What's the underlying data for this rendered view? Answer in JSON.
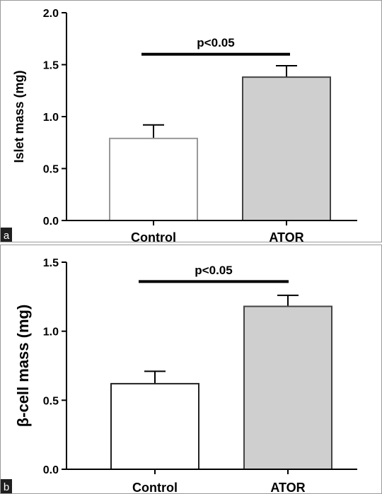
{
  "chart_data": [
    {
      "type": "bar",
      "panel_label": "a",
      "categories": [
        "Control",
        "ATOR"
      ],
      "values": [
        0.79,
        1.38
      ],
      "errors": [
        0.13,
        0.11
      ],
      "bar_colors": [
        "#ffffff",
        "#cfcfcf"
      ],
      "bar_edge_colors": [
        "#999999",
        "#444444"
      ],
      "ylabel": "Islet mass (mg)",
      "ylim": [
        0,
        2.0
      ],
      "yticks": [
        0.0,
        0.5,
        1.0,
        1.5,
        2.0
      ],
      "ytick_labels": [
        "0.0",
        "0.5",
        "1.0",
        "1.5",
        "2.0"
      ],
      "significance": {
        "label": "p<0.05",
        "y": 1.6
      },
      "grid": false
    },
    {
      "type": "bar",
      "panel_label": "b",
      "categories": [
        "Control",
        "ATOR"
      ],
      "values": [
        0.62,
        1.18
      ],
      "errors": [
        0.09,
        0.08
      ],
      "bar_colors": [
        "#ffffff",
        "#cfcfcf"
      ],
      "bar_edge_colors": [
        "#222222",
        "#444444"
      ],
      "ylabel": "β-cell mass (mg)",
      "ylim": [
        0,
        1.5
      ],
      "yticks": [
        0.0,
        0.5,
        1.0,
        1.5
      ],
      "ytick_labels": [
        "0.0",
        "0.5",
        "1.0",
        "1.5"
      ],
      "significance": {
        "label": "p<0.05",
        "y": 1.36
      },
      "grid": false
    }
  ]
}
